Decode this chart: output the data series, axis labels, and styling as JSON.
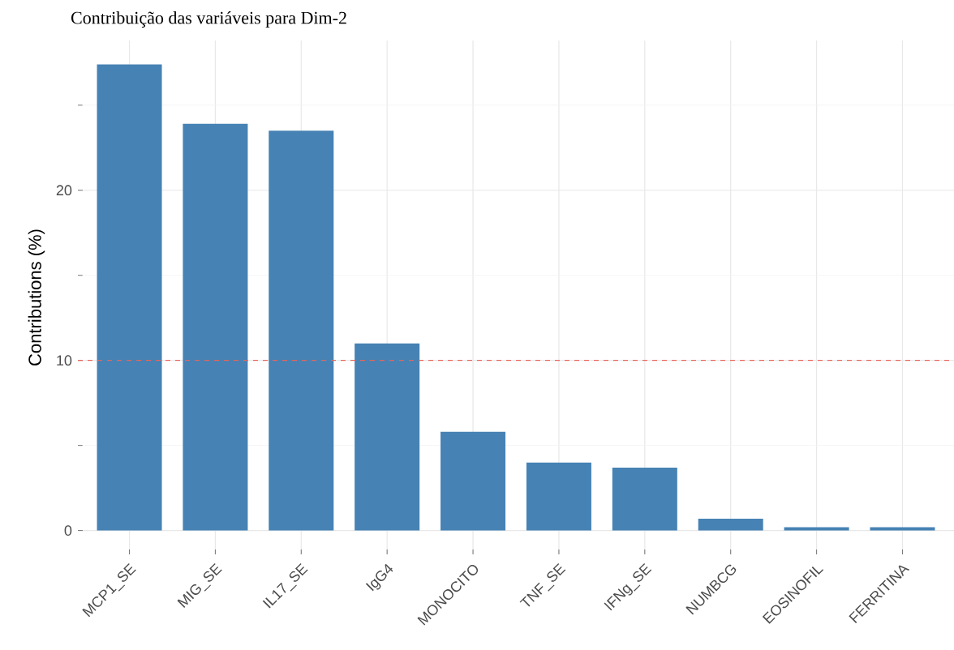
{
  "chart_data": {
    "type": "bar",
    "title": "Contribuição das variáveis para Dim-2",
    "ylabel": "Contributions (%)",
    "categories": [
      "MCP1_SE",
      "MIG_SE",
      "IL17_SE",
      "IgG4",
      "MONOCITO",
      "TNF_SE",
      "IFNg_SE",
      "NUMBCG",
      "EOSINOFIL",
      "FERRITINA"
    ],
    "values": [
      27.4,
      23.9,
      23.5,
      11.0,
      5.8,
      4.0,
      3.7,
      0.7,
      0.2,
      0.2
    ],
    "color": "#4682b4",
    "ylim": [
      -1.4,
      28.8
    ],
    "yticks": [
      0,
      10,
      20
    ],
    "grid": true,
    "ref_lines": [
      {
        "axis": "y",
        "value": 10,
        "color": "#e8645a",
        "line_style": "dashed"
      }
    ]
  }
}
